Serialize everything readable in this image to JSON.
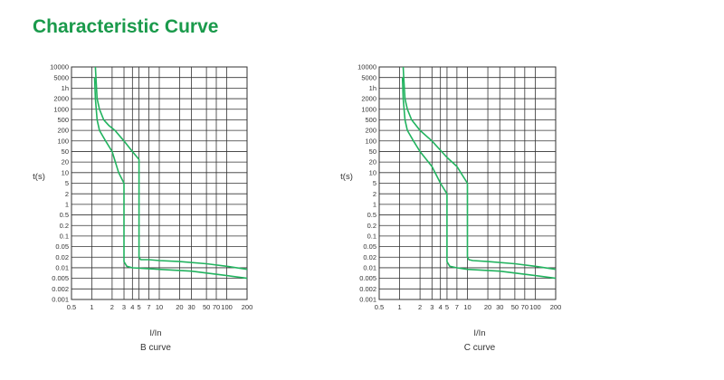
{
  "page": {
    "title": "Characteristic Curve"
  },
  "colors": {
    "title": "#1a9a4b",
    "curve": "#22b35f",
    "grid": "#333333",
    "text": "#333333"
  },
  "chart_data": [
    {
      "type": "line",
      "title": "B curve",
      "xlabel": "I/In",
      "ylabel": "t(s)",
      "xscale": "log",
      "yscale": "categorical-log",
      "xlim": [
        0.5,
        200
      ],
      "x_ticks": [
        0.5,
        1,
        2,
        3,
        4,
        5,
        7,
        10,
        20,
        30,
        50,
        70,
        100,
        200
      ],
      "x_tick_labels": [
        "0.5",
        "1",
        "2",
        "3",
        "4",
        "5",
        "7",
        "10",
        "20",
        "30",
        "50",
        "70",
        "100",
        "200"
      ],
      "y_tick_labels": [
        "10000",
        "5000",
        "1h",
        "2000",
        "1000",
        "500",
        "200",
        "100",
        "50",
        "20",
        "10",
        "5",
        "2",
        "1",
        "0.5",
        "0.2",
        "0.1",
        "0.05",
        "0.02",
        "0.01",
        "0.005",
        "0.002",
        "0.001"
      ],
      "series": [
        {
          "name": "upper",
          "x": [
            1.13,
            1.15,
            1.2,
            1.3,
            1.5,
            1.8,
            2.2,
            3,
            4,
            5,
            5,
            5.3,
            7,
            10,
            20,
            50,
            100,
            200
          ],
          "y": [
            10000,
            5000,
            2000,
            1000,
            500,
            300,
            200,
            100,
            50,
            25,
            0.02,
            0.017,
            0.017,
            0.016,
            0.015,
            0.013,
            0.011,
            0.009
          ]
        },
        {
          "name": "lower",
          "x": [
            1.1,
            1.13,
            1.2,
            1.3,
            1.6,
            2,
            2.5,
            3,
            3,
            3.3,
            4,
            10,
            30,
            100,
            200
          ],
          "y": [
            5000,
            2000,
            500,
            200,
            100,
            50,
            10,
            5,
            0.015,
            0.011,
            0.01,
            0.009,
            0.008,
            0.006,
            0.005
          ]
        }
      ]
    },
    {
      "type": "line",
      "title": "C curve",
      "xlabel": "I/In",
      "ylabel": "t(s)",
      "xscale": "log",
      "yscale": "categorical-log",
      "xlim": [
        0.5,
        200
      ],
      "x_ticks": [
        0.5,
        1,
        2,
        3,
        4,
        5,
        7,
        10,
        20,
        30,
        50,
        70,
        100,
        200
      ],
      "x_tick_labels": [
        "0.5",
        "1",
        "2",
        "3",
        "4",
        "5",
        "7",
        "10",
        "20",
        "30",
        "50",
        "70",
        "100",
        "200"
      ],
      "y_tick_labels": [
        "10000",
        "5000",
        "1h",
        "2000",
        "1000",
        "500",
        "200",
        "100",
        "50",
        "20",
        "10",
        "5",
        "2",
        "1",
        "0.5",
        "0.2",
        "0.1",
        "0.05",
        "0.02",
        "0.01",
        "0.005",
        "0.002",
        "0.001"
      ],
      "series": [
        {
          "name": "upper",
          "x": [
            1.13,
            1.15,
            1.2,
            1.3,
            1.5,
            2,
            3,
            5,
            7,
            10,
            10,
            10.5,
            12,
            20,
            50,
            100,
            200
          ],
          "y": [
            10000,
            5000,
            2000,
            1000,
            500,
            200,
            100,
            30,
            15,
            5,
            0.02,
            0.017,
            0.016,
            0.015,
            0.013,
            0.011,
            0.009
          ]
        },
        {
          "name": "lower",
          "x": [
            1.1,
            1.13,
            1.2,
            1.3,
            1.6,
            2,
            3,
            4,
            5,
            5,
            5.5,
            7,
            10,
            30,
            100,
            200
          ],
          "y": [
            5000,
            2000,
            500,
            200,
            100,
            50,
            15,
            5,
            2,
            0.015,
            0.011,
            0.01,
            0.009,
            0.008,
            0.006,
            0.005
          ]
        }
      ]
    }
  ]
}
